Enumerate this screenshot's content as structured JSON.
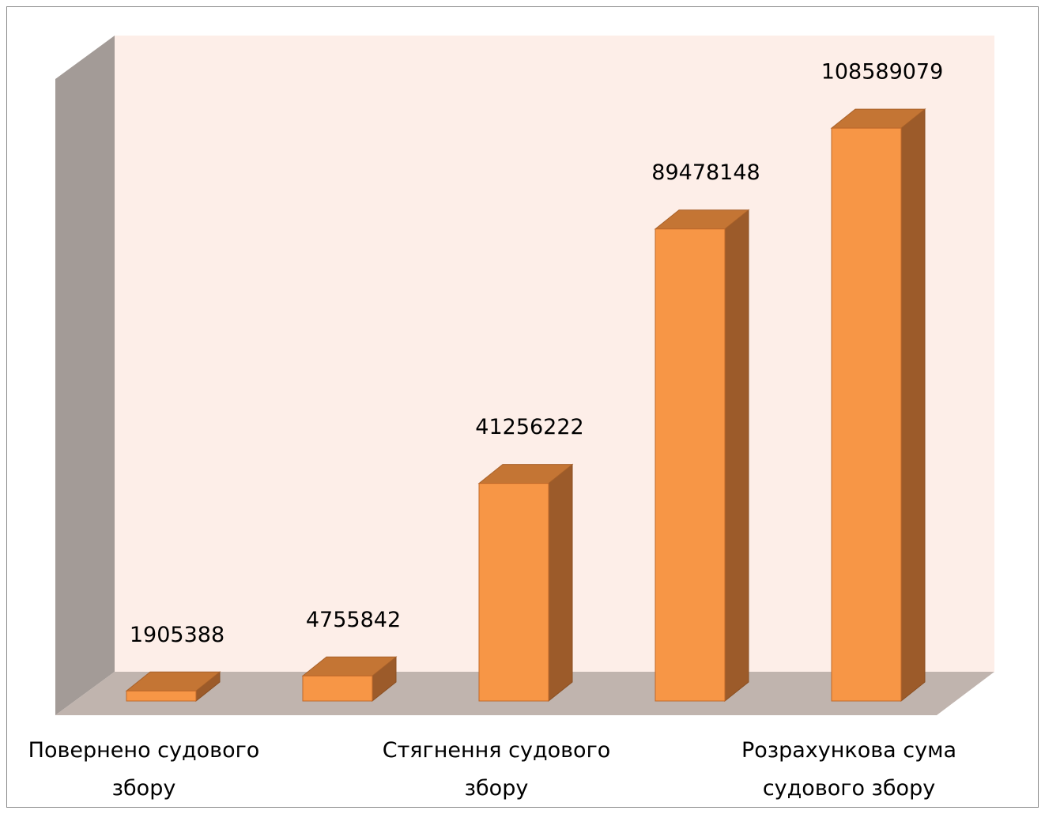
{
  "chart_data": {
    "type": "bar3d",
    "categories": [
      "Повернено судового збору",
      null,
      "Стягнення судового збору",
      null,
      "Розрахункова сума судового збору"
    ],
    "values": [
      1905388,
      4755842,
      41256222,
      89478148,
      108589079
    ],
    "color": "#f79646",
    "ylim": [
      0,
      120000000
    ]
  }
}
